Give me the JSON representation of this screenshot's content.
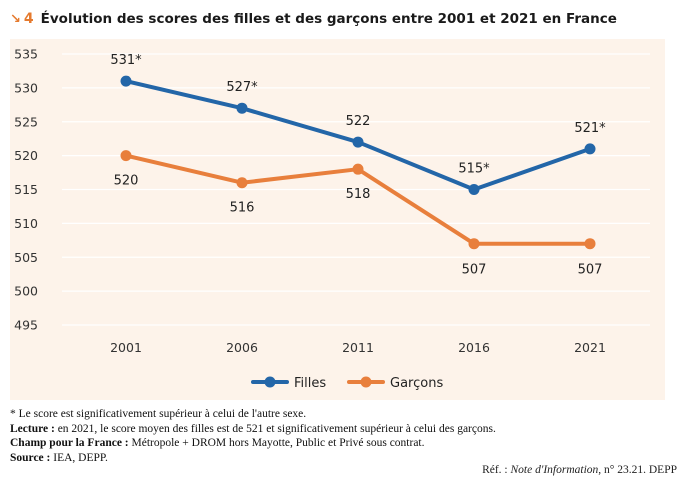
{
  "header": {
    "arrow": "↘",
    "figure_number": "4",
    "title": "Évolution des scores des filles et des garçons entre 2001 et 2021 en France"
  },
  "colors": {
    "filles": "#2366a8",
    "garcons": "#e87f3c",
    "accent": "#e57a2e",
    "panel_bg": "#fdf3ea",
    "grid": "#ffffff"
  },
  "chart_data": {
    "type": "line",
    "title": "Évolution des scores des filles et des garçons entre 2001 et 2021 en France",
    "categories": [
      "2001",
      "2006",
      "2011",
      "2016",
      "2021"
    ],
    "series": [
      {
        "name": "Filles",
        "values": [
          531,
          527,
          522,
          515,
          521
        ],
        "labels": [
          "531*",
          "527*",
          "522",
          "515*",
          "521*"
        ]
      },
      {
        "name": "Garçons",
        "values": [
          520,
          516,
          518,
          507,
          507
        ],
        "labels": [
          "520",
          "516",
          "518",
          "507",
          "507"
        ]
      }
    ],
    "yticks": [
      "535",
      "530",
      "525",
      "520",
      "515",
      "510",
      "505",
      "500",
      "495"
    ],
    "ylim": [
      495,
      535
    ],
    "xlabel": "",
    "ylabel": "",
    "grid": true,
    "legend_position": "bottom"
  },
  "notes": {
    "asterisk": "* Le score est significativement supérieur à celui de l'autre sexe.",
    "lecture_label": "Lecture :",
    "lecture_text": " en 2021, le score moyen des filles est de 521 et significativement supérieur à celui des garçons.",
    "champ_label": "Champ pour la France :",
    "champ_text": " Métropole + DROM hors Mayotte, Public et Privé sous contrat.",
    "source_label": "Source :",
    "source_text": " IEA, DEPP."
  },
  "reference": {
    "prefix": "Réf. :",
    "publication": "Note d'Information",
    "suffix": ", n° 23.21. DEPP"
  }
}
